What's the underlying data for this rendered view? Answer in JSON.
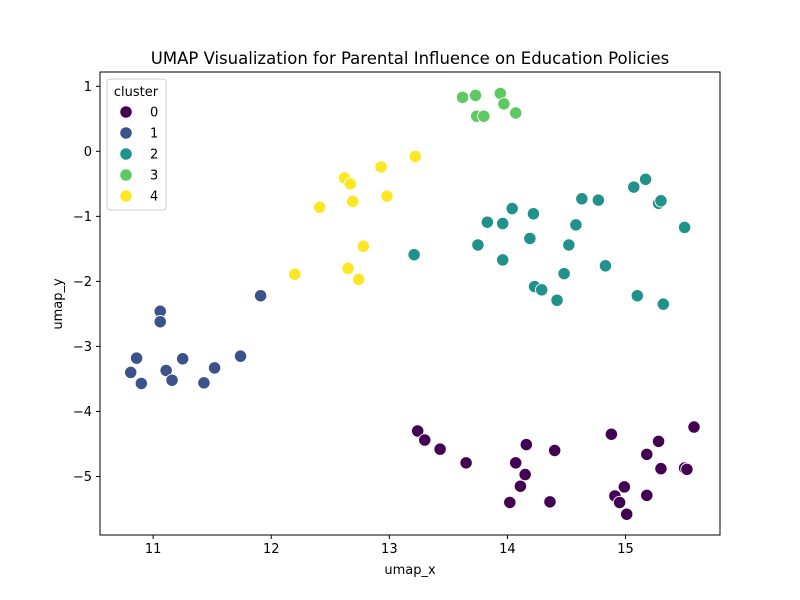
{
  "chart_data": {
    "type": "scatter",
    "title": "UMAP Visualization for Parental Influence on Education Policies",
    "xlabel": "umap_x",
    "ylabel": "umap_y",
    "xlim": [
      10.55,
      15.8
    ],
    "ylim": [
      -5.9,
      1.22
    ],
    "xticks": [
      11,
      12,
      13,
      14,
      15
    ],
    "yticks": [
      1,
      0,
      -1,
      -2,
      -3,
      -4,
      -5
    ],
    "grid": false,
    "legend": {
      "title": "cluster",
      "position": "top-left"
    },
    "series": [
      {
        "name": "0",
        "color": "#440154",
        "points": [
          [
            13.24,
            -4.3
          ],
          [
            13.3,
            -4.44
          ],
          [
            13.43,
            -4.58
          ],
          [
            13.65,
            -4.79
          ],
          [
            14.02,
            -5.4
          ],
          [
            14.07,
            -4.79
          ],
          [
            14.11,
            -5.15
          ],
          [
            14.15,
            -4.97
          ],
          [
            14.16,
            -4.51
          ],
          [
            14.36,
            -5.39
          ],
          [
            14.4,
            -4.6
          ],
          [
            14.88,
            -4.35
          ],
          [
            14.91,
            -5.3
          ],
          [
            14.95,
            -5.4
          ],
          [
            14.99,
            -5.16
          ],
          [
            15.01,
            -5.58
          ],
          [
            15.18,
            -4.66
          ],
          [
            15.18,
            -5.29
          ],
          [
            15.28,
            -4.46
          ],
          [
            15.3,
            -4.88
          ],
          [
            15.5,
            -4.87
          ],
          [
            15.52,
            -4.89
          ],
          [
            15.58,
            -4.24
          ]
        ]
      },
      {
        "name": "1",
        "color": "#3b528b",
        "points": [
          [
            10.81,
            -3.4
          ],
          [
            10.86,
            -3.18
          ],
          [
            10.9,
            -3.57
          ],
          [
            11.06,
            -2.46
          ],
          [
            11.06,
            -2.62
          ],
          [
            11.11,
            -3.37
          ],
          [
            11.16,
            -3.52
          ],
          [
            11.25,
            -3.19
          ],
          [
            11.43,
            -3.56
          ],
          [
            11.52,
            -3.33
          ],
          [
            11.74,
            -3.15
          ],
          [
            11.91,
            -2.22
          ]
        ]
      },
      {
        "name": "2",
        "color": "#21918c",
        "points": [
          [
            13.21,
            -1.59
          ],
          [
            13.75,
            -1.44
          ],
          [
            13.83,
            -1.09
          ],
          [
            13.96,
            -1.11
          ],
          [
            13.96,
            -1.67
          ],
          [
            14.04,
            -0.88
          ],
          [
            14.19,
            -1.34
          ],
          [
            14.22,
            -0.96
          ],
          [
            14.23,
            -2.08
          ],
          [
            14.29,
            -2.13
          ],
          [
            14.42,
            -2.29
          ],
          [
            14.48,
            -1.88
          ],
          [
            14.52,
            -1.44
          ],
          [
            14.58,
            -1.13
          ],
          [
            14.63,
            -0.73
          ],
          [
            14.77,
            -0.75
          ],
          [
            14.83,
            -1.76
          ],
          [
            15.07,
            -0.55
          ],
          [
            15.1,
            -2.22
          ],
          [
            15.17,
            -0.43
          ],
          [
            15.28,
            -0.8
          ],
          [
            15.3,
            -0.76
          ],
          [
            15.32,
            -2.35
          ],
          [
            15.5,
            -1.17
          ]
        ]
      },
      {
        "name": "3",
        "color": "#5ec962",
        "points": [
          [
            13.62,
            0.83
          ],
          [
            13.73,
            0.86
          ],
          [
            13.74,
            0.54
          ],
          [
            13.8,
            0.54
          ],
          [
            13.94,
            0.89
          ],
          [
            13.97,
            0.73
          ],
          [
            14.07,
            0.59
          ]
        ]
      },
      {
        "name": "4",
        "color": "#fde725",
        "points": [
          [
            12.2,
            -1.89
          ],
          [
            12.41,
            -0.86
          ],
          [
            12.62,
            -0.41
          ],
          [
            12.65,
            -1.8
          ],
          [
            12.67,
            -0.5
          ],
          [
            12.69,
            -0.77
          ],
          [
            12.74,
            -1.97
          ],
          [
            12.78,
            -1.46
          ],
          [
            12.93,
            -0.24
          ],
          [
            12.98,
            -0.69
          ],
          [
            13.22,
            -0.08
          ]
        ]
      }
    ]
  }
}
